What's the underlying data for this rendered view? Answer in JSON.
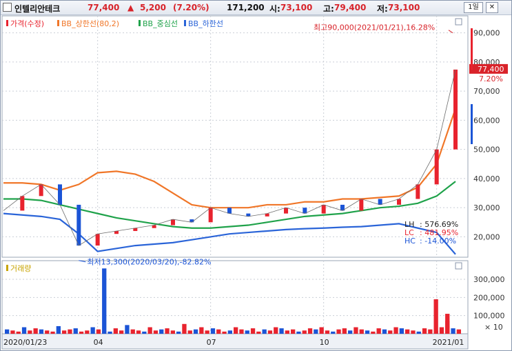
{
  "header": {
    "stock_name": "인텔리안테크",
    "price": "77,400",
    "change_arrow": "▲",
    "change": "5,200",
    "change_pct": "(7.20%)",
    "volume": "171,200",
    "open_label": "시:",
    "open": "73,100",
    "high_label": "고:",
    "high": "79,400",
    "low_label": "저:",
    "low": "73,100",
    "period_button": "1일",
    "close_button": "✕"
  },
  "colors": {
    "up": "#e8232e",
    "down": "#1b54d6",
    "upper": "#f07628",
    "middle": "#1fa24a",
    "lower": "#2a64d8",
    "grid": "#c9ced6",
    "price_tag_bg": "#d9232a"
  },
  "chart_data": [
    {
      "type": "line",
      "panel": "price",
      "legend": [
        {
          "label": "가격(수정)",
          "color": "#e8232e"
        },
        {
          "label": "BB_상한선(80,2)",
          "color": "#f07628"
        },
        {
          "label": "BB_중심선",
          "color": "#1fa24a"
        },
        {
          "label": "BB_하한선",
          "color": "#2a64d8"
        }
      ],
      "x_ticks": [
        "2020/01/23",
        "04",
        "07",
        "10",
        "2021/01"
      ],
      "y_ticks": [
        "20,000",
        "30,000",
        "40,000",
        "50,000",
        "60,000",
        "70,000",
        "80,000",
        "90,000"
      ],
      "ylim": [
        13000,
        93000
      ],
      "price_tag": {
        "value": "77,400",
        "pct": "7.20%"
      },
      "annotation_high": "최고90,000(2021/01/21),16.28%",
      "annotation_low": "최저13,300(2020/03/20),-82.82%",
      "stats": [
        {
          "label": "LH",
          "value": "576.69%",
          "color": "#222222"
        },
        {
          "label": "LC",
          "value": "481.95%",
          "color": "#e8232e"
        },
        {
          "label": "HC",
          "value": "-14.00%",
          "color": "#1b54d6"
        }
      ],
      "dates": [
        "2020-01",
        "2020-02",
        "2020-02b",
        "2020-03",
        "2020-03b",
        "2020-04",
        "2020-04b",
        "2020-05",
        "2020-05b",
        "2020-06",
        "2020-06b",
        "2020-07",
        "2020-07b",
        "2020-08",
        "2020-08b",
        "2020-09",
        "2020-09b",
        "2020-10",
        "2020-10b",
        "2020-11",
        "2020-11b",
        "2020-12",
        "2020-12b",
        "2021-01",
        "2021-01b"
      ],
      "series": [
        {
          "name": "가격(수정)",
          "values": [
            29000,
            34000,
            38000,
            31000,
            17000,
            21000,
            22000,
            23000,
            24000,
            26000,
            25000,
            30000,
            28000,
            27000,
            28000,
            30000,
            28000,
            31000,
            29000,
            33000,
            31000,
            33000,
            38000,
            50000,
            77400
          ]
        },
        {
          "name": "BB_상한선(80,2)",
          "values": [
            38500,
            38500,
            38000,
            36000,
            38000,
            42000,
            42500,
            41500,
            39000,
            35000,
            31000,
            30000,
            30000,
            30000,
            31000,
            31000,
            32000,
            32000,
            33000,
            33000,
            33500,
            34000,
            37000,
            45000,
            64000
          ]
        },
        {
          "name": "BB_중심선",
          "values": [
            33000,
            33000,
            32500,
            31000,
            29500,
            28000,
            26500,
            25500,
            24500,
            23500,
            23000,
            23000,
            23500,
            24000,
            25000,
            26000,
            27000,
            27500,
            28000,
            29000,
            30000,
            30500,
            31500,
            34000,
            39000
          ]
        },
        {
          "name": "BB_하한선",
          "values": [
            28000,
            27500,
            27000,
            26000,
            21000,
            15000,
            16000,
            17000,
            17500,
            18000,
            19000,
            20000,
            21000,
            21500,
            22000,
            22500,
            22800,
            23000,
            23300,
            23500,
            24000,
            24500,
            23000,
            21500,
            14000
          ]
        }
      ]
    },
    {
      "type": "bar",
      "panel": "volume",
      "legend": [
        {
          "label": "거래량",
          "color": "#c8a400"
        }
      ],
      "y_ticks": [
        "100,000",
        "200,000",
        "300,000"
      ],
      "unit": "× 10",
      "ylim": [
        0,
        380000
      ]
    }
  ]
}
